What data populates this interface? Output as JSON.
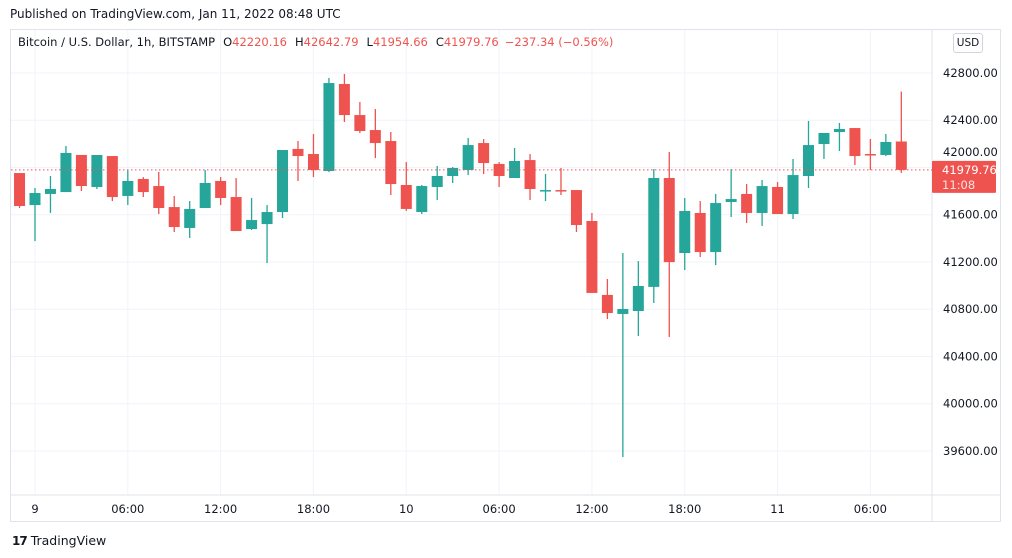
{
  "published": "Published on TradingView.com, Jan 11, 2022 08:48 UTC",
  "legend": {
    "symbol": "Bitcoin / U.S. Dollar, 1h, BITSTAMP",
    "o_label": "O",
    "o": "42220.16",
    "h_label": "H",
    "h": "42642.79",
    "l_label": "L",
    "l": "41954.66",
    "c_label": "C",
    "c": "41979.76",
    "change": "−237.34 (−0.56%)"
  },
  "currency_button": "USD",
  "footer_brand": "TradingView",
  "colors": {
    "up": "#26a69a",
    "down": "#ef5350",
    "grid": "#f0f3fa"
  },
  "chart_data": {
    "type": "candlestick",
    "title": "Bitcoin / U.S. Dollar, 1h, BITSTAMP",
    "ylim": [
      39400,
      42950
    ],
    "y_ticks": [
      "42800.00",
      "42400.00",
      "42000.00",
      "41600.00",
      "41200.00",
      "40800.00",
      "40400.00",
      "40000.00",
      "39600.00"
    ],
    "x_ticks": [
      {
        "label": "9",
        "t": "2022-01-09 00:00"
      },
      {
        "label": "06:00",
        "t": "2022-01-09 06:00"
      },
      {
        "label": "12:00",
        "t": "2022-01-09 12:00"
      },
      {
        "label": "18:00",
        "t": "2022-01-09 18:00"
      },
      {
        "label": "10",
        "t": "2022-01-10 00:00"
      },
      {
        "label": "06:00",
        "t": "2022-01-10 06:00"
      },
      {
        "label": "12:00",
        "t": "2022-01-10 12:00"
      },
      {
        "label": "18:00",
        "t": "2022-01-10 18:00"
      },
      {
        "label": "11",
        "t": "2022-01-11 00:00"
      },
      {
        "label": "06:00",
        "t": "2022-01-11 06:00"
      }
    ],
    "last_price": {
      "value": "41979.76",
      "countdown": "11:08"
    },
    "columns": [
      "time",
      "open",
      "high",
      "low",
      "close"
    ],
    "candles": [
      [
        "2022-01-08 23:00",
        41953,
        41953,
        41657,
        41674
      ],
      [
        "2022-01-09 00:00",
        41682,
        41826,
        41377,
        41784
      ],
      [
        "2022-01-09 01:00",
        41776,
        41928,
        41615,
        41818
      ],
      [
        "2022-01-09 02:00",
        41792,
        42182,
        41792,
        42123
      ],
      [
        "2022-01-09 03:00",
        42106,
        42106,
        41801,
        41843
      ],
      [
        "2022-01-09 04:00",
        41835,
        42106,
        41818,
        42106
      ],
      [
        "2022-01-09 05:00",
        42097,
        42097,
        41716,
        41750
      ],
      [
        "2022-01-09 06:00",
        41759,
        41979,
        41682,
        41886
      ],
      [
        "2022-01-09 07:00",
        41903,
        41919,
        41750,
        41792
      ],
      [
        "2022-01-09 08:00",
        41843,
        41962,
        41606,
        41657
      ],
      [
        "2022-01-09 09:00",
        41665,
        41759,
        41454,
        41496
      ],
      [
        "2022-01-09 10:00",
        41488,
        41716,
        41403,
        41649
      ],
      [
        "2022-01-09 11:00",
        41657,
        41979,
        41657,
        41869
      ],
      [
        "2022-01-09 12:00",
        41886,
        41919,
        41682,
        41742
      ],
      [
        "2022-01-09 13:00",
        41750,
        41911,
        41462,
        41462
      ],
      [
        "2022-01-09 14:00",
        41479,
        41742,
        41471,
        41555
      ],
      [
        "2022-01-09 15:00",
        41521,
        41682,
        41191,
        41623
      ],
      [
        "2022-01-09 16:00",
        41623,
        42148,
        41572,
        42148
      ],
      [
        "2022-01-09 17:00",
        42157,
        42224,
        41886,
        42097
      ],
      [
        "2022-01-09 18:00",
        42114,
        42284,
        41919,
        41979
      ],
      [
        "2022-01-09 19:00",
        41970,
        42758,
        41962,
        42715
      ],
      [
        "2022-01-09 20:00",
        42707,
        42792,
        42385,
        42444
      ],
      [
        "2022-01-09 21:00",
        42444,
        42554,
        42292,
        42309
      ],
      [
        "2022-01-09 22:00",
        42317,
        42495,
        42080,
        42207
      ],
      [
        "2022-01-09 23:00",
        42224,
        42300,
        41767,
        41860
      ],
      [
        "2022-01-10 00:00",
        41852,
        42046,
        41632,
        41649
      ],
      [
        "2022-01-10 01:00",
        41623,
        41852,
        41606,
        41843
      ],
      [
        "2022-01-10 02:00",
        41835,
        42013,
        41725,
        41928
      ],
      [
        "2022-01-10 03:00",
        41928,
        42004,
        41869,
        41996
      ],
      [
        "2022-01-10 04:00",
        41979,
        42250,
        41936,
        42190
      ],
      [
        "2022-01-10 05:00",
        42207,
        42241,
        41945,
        42038
      ],
      [
        "2022-01-10 06:00",
        42030,
        42046,
        41835,
        41928
      ],
      [
        "2022-01-10 07:00",
        41911,
        42165,
        41911,
        42055
      ],
      [
        "2022-01-10 08:00",
        42063,
        42114,
        41725,
        41818
      ],
      [
        "2022-01-10 09:00",
        41801,
        41945,
        41716,
        41809
      ],
      [
        "2022-01-10 10:00",
        41809,
        41996,
        41767,
        41801
      ],
      [
        "2022-01-10 11:00",
        41809,
        41809,
        41454,
        41513
      ],
      [
        "2022-01-10 12:00",
        41547,
        41615,
        40938,
        40938
      ],
      [
        "2022-01-10 13:00",
        40921,
        41056,
        40717,
        40768
      ],
      [
        "2022-01-10 14:00",
        40760,
        41276,
        39549,
        40802
      ],
      [
        "2022-01-10 15:00",
        40785,
        41208,
        40573,
        40997
      ],
      [
        "2022-01-10 16:00",
        40989,
        41987,
        40853,
        41911
      ],
      [
        "2022-01-10 17:00",
        41911,
        42131,
        40565,
        41199
      ],
      [
        "2022-01-10 18:00",
        41276,
        41742,
        41132,
        41632
      ],
      [
        "2022-01-10 19:00",
        41615,
        41716,
        41242,
        41284
      ],
      [
        "2022-01-10 20:00",
        41284,
        41776,
        41174,
        41699
      ],
      [
        "2022-01-10 21:00",
        41708,
        41987,
        41581,
        41733
      ],
      [
        "2022-01-10 22:00",
        41776,
        41860,
        41530,
        41615
      ],
      [
        "2022-01-10 23:00",
        41615,
        41894,
        41505,
        41843
      ],
      [
        "2022-01-11 00:00",
        41835,
        41877,
        41606,
        41606
      ],
      [
        "2022-01-11 01:00",
        41606,
        42072,
        41564,
        41936
      ],
      [
        "2022-01-11 02:00",
        41928,
        42394,
        41826,
        42190
      ],
      [
        "2022-01-11 03:00",
        42199,
        42292,
        42072,
        42292
      ],
      [
        "2022-01-11 04:00",
        42300,
        42377,
        42140,
        42326
      ],
      [
        "2022-01-11 05:00",
        42334,
        42334,
        42021,
        42097
      ],
      [
        "2022-01-11 06:00",
        42114,
        42241,
        41979,
        42106
      ],
      [
        "2022-01-11 07:00",
        42106,
        42284,
        42097,
        42216
      ],
      [
        "2022-01-11 08:00",
        42220.16,
        42642.79,
        41954.66,
        41979.76
      ]
    ]
  }
}
